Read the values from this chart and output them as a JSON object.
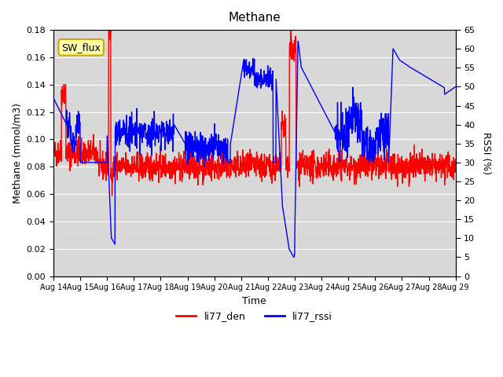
{
  "title": "Methane",
  "xlabel": "Time",
  "ylabel_left": "Methane (mmol/m3)",
  "ylabel_right": "RSSI (%)",
  "ylim_left": [
    0.0,
    0.18
  ],
  "ylim_right": [
    0,
    65
  ],
  "yticks_left": [
    0.0,
    0.02,
    0.04,
    0.06,
    0.08,
    0.1,
    0.12,
    0.14,
    0.16,
    0.18
  ],
  "yticks_right": [
    0,
    5,
    10,
    15,
    20,
    25,
    30,
    35,
    40,
    45,
    50,
    55,
    60,
    65
  ],
  "xtick_labels": [
    "Aug 14",
    "Aug 15",
    "Aug 16",
    "Aug 17",
    "Aug 18",
    "Aug 19",
    "Aug 20",
    "Aug 21",
    "Aug 22",
    "Aug 23",
    "Aug 24",
    "Aug 25",
    "Aug 26",
    "Aug 27",
    "Aug 28",
    "Aug 29"
  ],
  "color_red": "#ff0000",
  "color_blue": "#0000ff",
  "background_color": "#e8e8e8",
  "plot_bg_color": "#d8d8d8",
  "sw_flux_bg": "#ffffaa",
  "sw_flux_border": "#ccaa00",
  "legend_labels": [
    "li77_den",
    "li77_rssi"
  ],
  "linewidth": 1.0
}
